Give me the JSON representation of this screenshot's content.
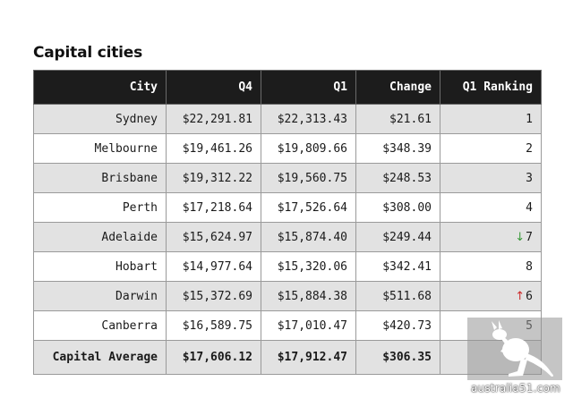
{
  "title": "Capital cities",
  "columns": [
    "City",
    "Q4",
    "Q1",
    "Change",
    "Q1 Ranking"
  ],
  "rows": [
    {
      "city": "Sydney",
      "q4": "$22,291.81",
      "q1": "$22,313.43",
      "change": "$21.61",
      "rank": "1",
      "trend": ""
    },
    {
      "city": "Melbourne",
      "q4": "$19,461.26",
      "q1": "$19,809.66",
      "change": "$348.39",
      "rank": "2",
      "trend": ""
    },
    {
      "city": "Brisbane",
      "q4": "$19,312.22",
      "q1": "$19,560.75",
      "change": "$248.53",
      "rank": "3",
      "trend": ""
    },
    {
      "city": "Perth",
      "q4": "$17,218.64",
      "q1": "$17,526.64",
      "change": "$308.00",
      "rank": "4",
      "trend": ""
    },
    {
      "city": "Adelaide",
      "q4": "$15,624.97",
      "q1": "$15,874.40",
      "change": "$249.44",
      "rank": "7",
      "trend": "down"
    },
    {
      "city": "Hobart",
      "q4": "$14,977.64",
      "q1": "$15,320.06",
      "change": "$342.41",
      "rank": "8",
      "trend": ""
    },
    {
      "city": "Darwin",
      "q4": "$15,372.69",
      "q1": "$15,884.38",
      "change": "$511.68",
      "rank": "6",
      "trend": "up"
    },
    {
      "city": "Canberra",
      "q4": "$16,589.75",
      "q1": "$17,010.47",
      "change": "$420.73",
      "rank": "5",
      "trend": ""
    }
  ],
  "footer": {
    "city": "Capital Average",
    "q4": "$17,606.12",
    "q1": "$17,912.47",
    "change": "$306.35",
    "rank": ""
  },
  "colors": {
    "header_bg": "#1c1c1c",
    "shaded_row": "#e2e2e2",
    "trend_down": "#3a9a3a",
    "trend_up": "#cc2a2a"
  },
  "icons": {
    "trend_down": "arrow-down-icon",
    "trend_up": "arrow-up-icon",
    "watermark": "kangaroo-logo-icon"
  },
  "watermark": {
    "text": "australia51.com"
  }
}
